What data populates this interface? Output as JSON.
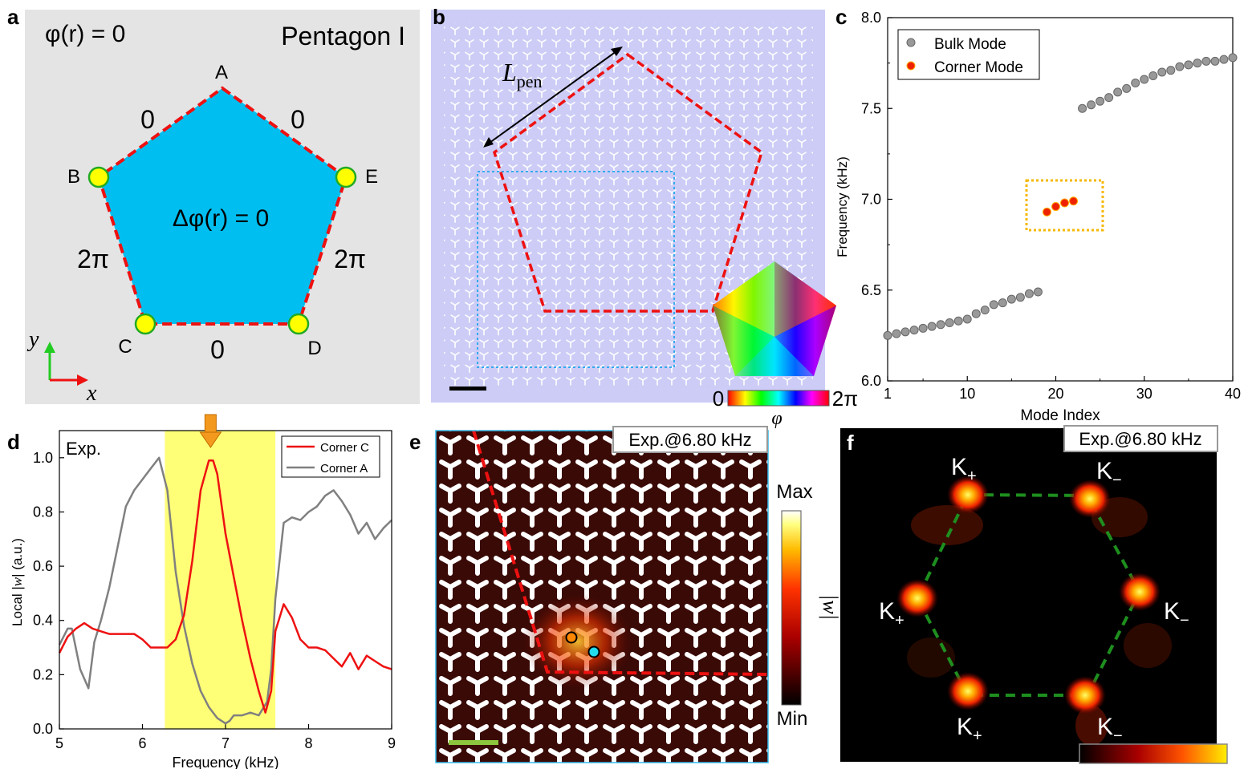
{
  "panel_labels": {
    "a": "a",
    "b": "b",
    "c": "c",
    "d": "d",
    "e": "e",
    "f": "f"
  },
  "panel_a": {
    "title": "Pentagon I",
    "phi_eq": "φ(r) = 0",
    "laplace_eq": "Δφ(r) = 0",
    "vertices": [
      "A",
      "B",
      "C",
      "D",
      "E"
    ],
    "edge_labels": {
      "AB": "0",
      "AE": "0",
      "BC": "2π",
      "ED": "2π",
      "CD": "0"
    },
    "axis_x": "x",
    "axis_y": "y",
    "colors": {
      "background": "#e4e4e4",
      "fill": "#00bff0",
      "edge": "#ee1111",
      "vertex": "#ffff00",
      "vertex_ring": "#22aa22"
    }
  },
  "panel_b": {
    "length_label": "L",
    "length_sub": "pen",
    "colorbar_min": "0",
    "colorbar_max": "2π",
    "colorbar_label": "φ",
    "colors": {
      "background": "#ccccf6",
      "pentagon": "#ee1111",
      "box": "#33aaee"
    }
  },
  "panel_e": {
    "tag": "Exp.@6.80 kHz",
    "colorbar_max": "Max",
    "colorbar_min": "Min",
    "colorbar_label": "|w|"
  },
  "panel_f": {
    "tag": "Exp.@6.80 kHz",
    "valley_labels": [
      {
        "base": "K",
        "sign": "+"
      },
      {
        "base": "K",
        "sign": "−"
      },
      {
        "base": "K",
        "sign": "−"
      },
      {
        "base": "K",
        "sign": "+"
      },
      {
        "base": "K",
        "sign": "+"
      },
      {
        "base": "K",
        "sign": "−"
      }
    ]
  },
  "chart_data": [
    {
      "type": "scatter",
      "panel": "c",
      "xlabel": "Mode Index",
      "ylabel": "Frequency (kHz)",
      "xlim": [
        1,
        40
      ],
      "ylim": [
        6.0,
        8.0
      ],
      "xticks": [
        1,
        10,
        20,
        30,
        40
      ],
      "yticks": [
        "6.0",
        "6.5",
        "7.0",
        "7.5",
        "8.0"
      ],
      "legend_position": "top-left",
      "series": [
        {
          "name": "Bulk Mode",
          "color": "#999999",
          "x": [
            1,
            2,
            3,
            4,
            5,
            6,
            7,
            8,
            9,
            10,
            11,
            12,
            13,
            14,
            15,
            16,
            17,
            18,
            23,
            24,
            25,
            26,
            27,
            28,
            29,
            30,
            31,
            32,
            33,
            34,
            35,
            36,
            37,
            38,
            39,
            40
          ],
          "y": [
            6.25,
            6.26,
            6.27,
            6.28,
            6.29,
            6.3,
            6.31,
            6.32,
            6.33,
            6.34,
            6.37,
            6.39,
            6.42,
            6.43,
            6.45,
            6.46,
            6.48,
            6.49,
            7.5,
            7.52,
            7.54,
            7.56,
            7.59,
            7.61,
            7.64,
            7.66,
            7.68,
            7.7,
            7.71,
            7.73,
            7.74,
            7.75,
            7.76,
            7.76,
            7.77,
            7.78
          ]
        },
        {
          "name": "Corner Mode",
          "color": "#ee2200",
          "x": [
            19,
            20,
            21,
            22
          ],
          "y": [
            6.93,
            6.96,
            6.98,
            6.99
          ]
        }
      ]
    },
    {
      "type": "line",
      "panel": "d",
      "annotation": "Exp.",
      "xlabel": "Frequency (kHz)",
      "ylabel_prefix": "Local |",
      "ylabel_var": "w",
      "ylabel_suffix": "| (a.u.)",
      "xlim": [
        5,
        9
      ],
      "ylim": [
        0.0,
        1.1
      ],
      "xticks": [
        5,
        6,
        7,
        8,
        9
      ],
      "yticks": [
        "0.0",
        "0.2",
        "0.4",
        "0.6",
        "0.8",
        "1.0"
      ],
      "highlight_band": [
        6.27,
        7.6
      ],
      "arrow_at": 6.82,
      "legend_position": "top-right",
      "series": [
        {
          "name": "Corner C",
          "color": "#ee1111",
          "x": [
            5.0,
            5.1,
            5.2,
            5.3,
            5.4,
            5.5,
            5.6,
            5.7,
            5.8,
            5.9,
            6.0,
            6.1,
            6.2,
            6.3,
            6.4,
            6.5,
            6.6,
            6.7,
            6.8,
            6.85,
            6.9,
            7.0,
            7.1,
            7.2,
            7.3,
            7.4,
            7.48,
            7.55,
            7.6,
            7.7,
            7.8,
            7.9,
            8.0,
            8.1,
            8.2,
            8.3,
            8.4,
            8.5,
            8.6,
            8.7,
            8.8,
            8.9,
            9.0
          ],
          "y": [
            0.28,
            0.34,
            0.37,
            0.39,
            0.37,
            0.36,
            0.35,
            0.35,
            0.35,
            0.35,
            0.33,
            0.3,
            0.3,
            0.3,
            0.33,
            0.42,
            0.62,
            0.88,
            0.99,
            0.99,
            0.94,
            0.72,
            0.56,
            0.4,
            0.26,
            0.14,
            0.06,
            0.14,
            0.36,
            0.46,
            0.41,
            0.33,
            0.3,
            0.3,
            0.29,
            0.26,
            0.23,
            0.28,
            0.22,
            0.27,
            0.25,
            0.23,
            0.22
          ]
        },
        {
          "name": "Corner A",
          "color": "#808080",
          "x": [
            5.0,
            5.1,
            5.15,
            5.25,
            5.35,
            5.42,
            5.5,
            5.6,
            5.7,
            5.8,
            5.9,
            6.0,
            6.1,
            6.2,
            6.3,
            6.4,
            6.5,
            6.6,
            6.7,
            6.8,
            6.9,
            7.0,
            7.05,
            7.1,
            7.2,
            7.3,
            7.4,
            7.5,
            7.55,
            7.6,
            7.7,
            7.8,
            7.9,
            8.0,
            8.1,
            8.2,
            8.3,
            8.4,
            8.5,
            8.6,
            8.7,
            8.8,
            8.9,
            9.0
          ],
          "y": [
            0.31,
            0.37,
            0.37,
            0.22,
            0.15,
            0.32,
            0.4,
            0.52,
            0.67,
            0.82,
            0.88,
            0.92,
            0.96,
            1.0,
            0.88,
            0.58,
            0.38,
            0.24,
            0.14,
            0.08,
            0.04,
            0.02,
            0.03,
            0.05,
            0.05,
            0.06,
            0.05,
            0.1,
            0.22,
            0.48,
            0.76,
            0.78,
            0.77,
            0.8,
            0.82,
            0.86,
            0.88,
            0.84,
            0.79,
            0.72,
            0.76,
            0.7,
            0.74,
            0.77
          ]
        }
      ]
    }
  ]
}
